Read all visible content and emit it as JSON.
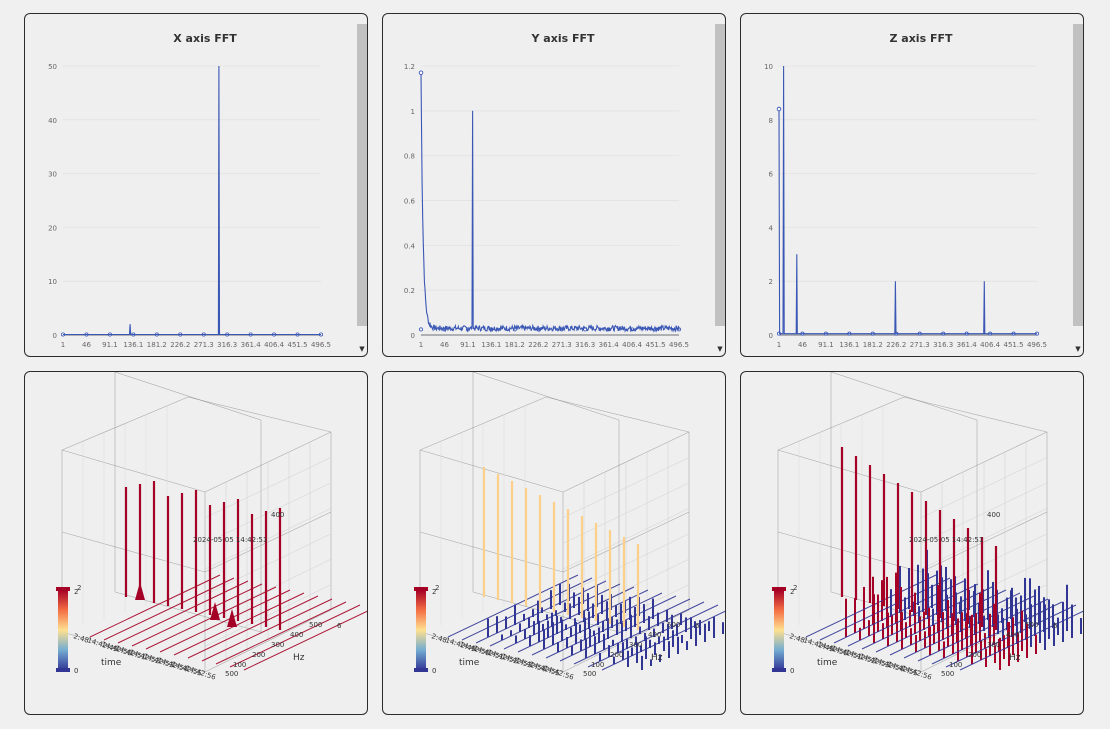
{
  "fft_panels": [
    {
      "title": "X axis FFT",
      "x_ticks": [
        "1",
        "46",
        "91.1",
        "136.1",
        "181.2",
        "226.2",
        "271.3",
        "316.3",
        "361.4",
        "406.4",
        "451.5",
        "496.5"
      ],
      "y_ticks": [
        "0",
        "10",
        "20",
        "30",
        "40",
        "50"
      ]
    },
    {
      "title": "Y axis FFT",
      "x_ticks": [
        "1",
        "46",
        "91.1",
        "136.1",
        "181.2",
        "226.2",
        "271.3",
        "316.3",
        "361.4",
        "406.4",
        "451.5",
        "496.5"
      ],
      "y_ticks": [
        "0",
        "0.2",
        "0.4",
        "0.6",
        "0.8",
        "1",
        "1.2"
      ]
    },
    {
      "title": "Z axis FFT",
      "x_ticks": [
        "1",
        "46",
        "91.1",
        "136.1",
        "181.2",
        "226.2",
        "271.3",
        "316.3",
        "361.4",
        "406.4",
        "451.5",
        "496.5"
      ],
      "y_ticks": [
        "0",
        "2",
        "4",
        "6",
        "8",
        "10"
      ]
    }
  ],
  "waterfall_panels": [
    {
      "hz_label": "Hz",
      "time_label": "time",
      "hz_ticks": [
        "100",
        "200",
        "300",
        "400",
        "500"
      ],
      "time_ticks": [
        "2:48",
        "14:42:49",
        "14:42:50",
        "14:42:51",
        "14:42:52",
        "14:42:53",
        "14:42:54",
        "14:42:55",
        "14:42:56"
      ],
      "z_tick_right": "6",
      "z_tick_left": "2",
      "bottom_hz": "500",
      "tooltip": "2024-05-05 14:42:51",
      "tooltip_value": "400",
      "visualmap_max": "2",
      "visualmap_min": "0"
    },
    {
      "hz_label": "Hz",
      "time_label": "time",
      "hz_ticks": [
        "100",
        "200",
        "300",
        "400",
        "500"
      ],
      "time_ticks": [
        "2:48",
        "14:42:49",
        "14:42:50",
        "14:42:51",
        "14:42:52",
        "14:42:53",
        "14:42:54",
        "14:42:55",
        "14:42:56"
      ],
      "z_tick_right": "6",
      "z_tick_left": "2",
      "bottom_hz": "500",
      "tooltip": "",
      "tooltip_value": "",
      "visualmap_max": "2",
      "visualmap_min": "0"
    },
    {
      "hz_label": "Hz",
      "time_label": "time",
      "hz_ticks": [
        "100",
        "200",
        "300",
        "400",
        "500"
      ],
      "time_ticks": [
        "2:48",
        "14:42:49",
        "14:42:50",
        "14:42:51",
        "14:42:52",
        "14:42:53",
        "14:42:54",
        "14:42:55",
        "14:42:56"
      ],
      "z_tick_right": "6",
      "z_tick_left": "2",
      "bottom_hz": "500",
      "tooltip": "2024-05-05 14:42:51",
      "tooltip_value": "400",
      "visualmap_max": "2",
      "visualmap_min": "0"
    }
  ],
  "chart_data": [
    {
      "type": "line",
      "title": "X axis FFT",
      "xlabel": "",
      "ylabel": "",
      "xlim": [
        1,
        496.5
      ],
      "ylim": [
        0,
        50
      ],
      "baseline": 0.1,
      "peaks": [
        {
          "x": 45,
          "y": 0.1
        },
        {
          "x": 130,
          "y": 2
        },
        {
          "x": 300,
          "y": 50
        }
      ],
      "noise": 0
    },
    {
      "type": "line",
      "title": "Y axis FFT",
      "xlabel": "",
      "ylabel": "",
      "xlim": [
        1,
        496.5
      ],
      "ylim": [
        0,
        1.2
      ],
      "start_value": 1.17,
      "decay_to": 0.03,
      "baseline": 0.025,
      "peaks": [
        {
          "x": 100,
          "y": 1.0
        }
      ],
      "noise": 0.012
    },
    {
      "type": "line",
      "title": "Z axis FFT",
      "xlabel": "",
      "ylabel": "",
      "xlim": [
        1,
        496.5
      ],
      "ylim": [
        0,
        10
      ],
      "start_value": 8.4,
      "baseline": 0.05,
      "peaks": [
        {
          "x": 10,
          "y": 10
        },
        {
          "x": 35,
          "y": 3
        },
        {
          "x": 225,
          "y": 2
        },
        {
          "x": 395,
          "y": 2
        }
      ],
      "noise": 0
    }
  ],
  "waterfall_colors": {
    "x": [
      "#a50026",
      "#a50026"
    ],
    "y": [
      "#fdd08a",
      "#313695"
    ],
    "z": [
      "#a50026",
      "#313695"
    ]
  },
  "line_color": "#3a57b5"
}
